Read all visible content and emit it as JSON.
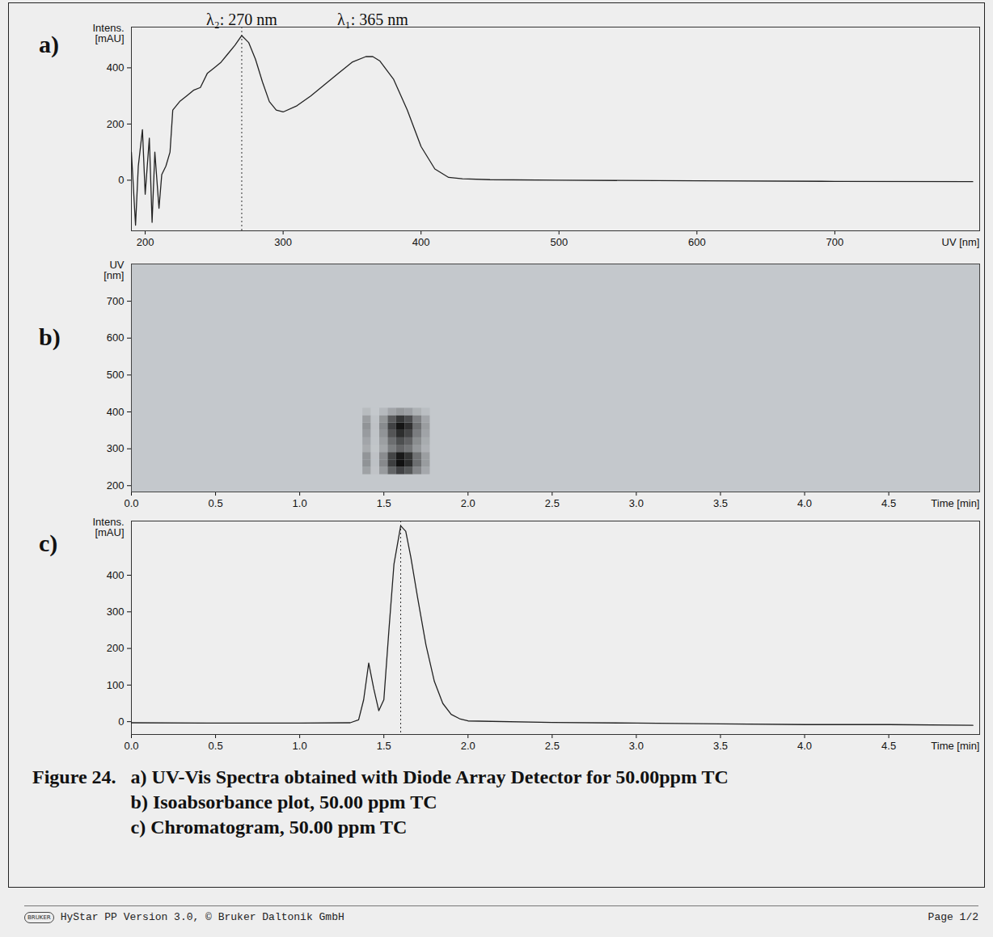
{
  "chart_data": [
    {
      "panel": "a)",
      "type": "line",
      "x_label": "UV [nm]",
      "y_label": "Intens.\n[mAU]",
      "color": "#222222",
      "x": [
        190,
        193,
        195,
        198,
        200,
        203,
        205,
        207,
        210,
        212,
        215,
        218,
        220,
        225,
        230,
        235,
        240,
        245,
        250,
        255,
        260,
        265,
        270,
        275,
        280,
        285,
        290,
        295,
        300,
        310,
        320,
        330,
        340,
        350,
        360,
        365,
        370,
        380,
        390,
        400,
        410,
        420,
        430,
        450,
        500,
        600,
        700,
        800
      ],
      "values": [
        100,
        -160,
        50,
        180,
        -50,
        150,
        -150,
        100,
        -100,
        20,
        50,
        100,
        250,
        280,
        300,
        320,
        330,
        380,
        400,
        420,
        450,
        480,
        515,
        490,
        430,
        350,
        280,
        250,
        243,
        265,
        300,
        340,
        380,
        420,
        440,
        440,
        425,
        360,
        250,
        120,
        40,
        10,
        5,
        2,
        0,
        -2,
        -4,
        -5
      ],
      "xlim": [
        190,
        805
      ],
      "ylim": [
        -180,
        545
      ],
      "xticks": [
        200,
        300,
        400,
        500,
        600,
        700
      ],
      "yticks": [
        0,
        200,
        400
      ],
      "cursor_x": 270,
      "annotations": [
        {
          "text": "λ₂: 270 nm",
          "x": 270
        },
        {
          "text": "λ₁: 365 nm",
          "x": 365
        }
      ]
    },
    {
      "panel": "b)",
      "type": "heatmap",
      "x_label": "Time [min]",
      "y_label": "UV\n[nm]",
      "x": [
        1.4,
        1.45,
        1.5,
        1.55,
        1.6,
        1.65,
        1.7,
        1.75
      ],
      "y": [
        240,
        260,
        280,
        300,
        320,
        340,
        360,
        380,
        400
      ],
      "cells": [
        [
          99,
          135,
          129,
          74,
          90,
          114,
          132,
          108,
          36
        ],
        [
          17,
          23,
          22,
          12,
          15,
          19,
          22,
          18,
          6
        ],
        [
          116,
          158,
          151,
          86,
          105,
          133,
          154,
          126,
          42
        ],
        [
          248,
          338,
          323,
          184,
          225,
          285,
          330,
          270,
          90
        ],
        [
          330,
          450,
          430,
          245,
          300,
          380,
          440,
          360,
          120
        ],
        [
          281,
          383,
          366,
          208,
          255,
          323,
          374,
          306,
          102
        ],
        [
          165,
          225,
          215,
          123,
          150,
          190,
          220,
          180,
          60
        ],
        [
          83,
          113,
          108,
          61,
          75,
          95,
          110,
          90,
          30
        ]
      ],
      "xlim": [
        0,
        5.04
      ],
      "ylim": [
        183,
        801
      ],
      "xticks": [
        {
          "value": 0,
          "label": "0.0"
        },
        0.5,
        {
          "value": 1,
          "label": "1.0"
        },
        1.5,
        {
          "value": 2,
          "label": "2.0"
        },
        2.5,
        {
          "value": 3,
          "label": "3.0"
        },
        3.5,
        {
          "value": 4,
          "label": "4.0"
        },
        4.5
      ],
      "yticks": [
        200,
        300,
        400,
        500,
        600,
        700
      ]
    },
    {
      "panel": "c)",
      "type": "line",
      "x_label": "Time [min]",
      "y_label": "Intens.\n[mAU]",
      "color": "#222222",
      "x": [
        0,
        0.5,
        1.0,
        1.3,
        1.35,
        1.38,
        1.41,
        1.44,
        1.47,
        1.5,
        1.53,
        1.56,
        1.6,
        1.63,
        1.66,
        1.7,
        1.75,
        1.8,
        1.85,
        1.9,
        1.95,
        2.0,
        2.5,
        3.0,
        3.5,
        4.0,
        4.5,
        5.0
      ],
      "values": [
        -3,
        -4,
        -4,
        -3,
        5,
        60,
        160,
        90,
        30,
        60,
        250,
        430,
        535,
        520,
        450,
        340,
        210,
        110,
        50,
        20,
        8,
        2,
        -2,
        -4,
        -6,
        -8,
        -8,
        -10
      ],
      "xlim": [
        0,
        5.04
      ],
      "ylim": [
        -35,
        548
      ],
      "xticks": [
        {
          "value": 0,
          "label": "0.0"
        },
        0.5,
        {
          "value": 1,
          "label": "1.0"
        },
        1.5,
        {
          "value": 2,
          "label": "2.0"
        },
        2.5,
        {
          "value": 3,
          "label": "3.0"
        },
        3.5,
        {
          "value": 4,
          "label": "4.0"
        },
        4.5
      ],
      "yticks": [
        0,
        100,
        200,
        300,
        400
      ],
      "cursor_x": 1.6
    }
  ],
  "caption": [
    "Figure 24.",
    "a) UV-Vis Spectra obtained with Diode Array Detector for 50.00ppm TC",
    "b) Isoabsorbance plot, 50.00 ppm TC",
    "c) Chromatogram, 50.00 ppm TC"
  ],
  "footer": {
    "logo": "BRUKER",
    "text": "HyStar PP Version 3.0,  © Bruker Daltonik GmbH",
    "page": "Page 1/2"
  }
}
